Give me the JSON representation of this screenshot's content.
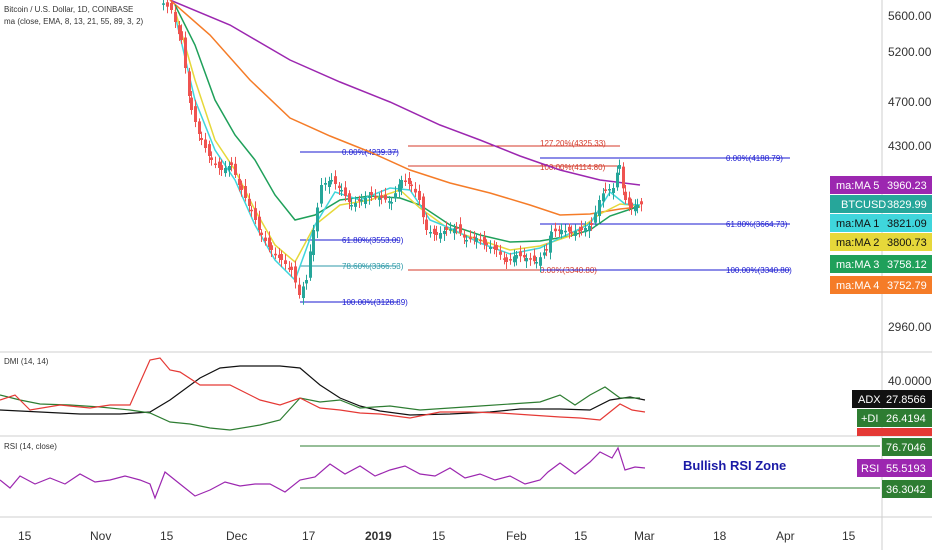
{
  "header": {
    "title": "Bitcoin / U.S. Dollar, 1D, COINBASE",
    "indicator": "ma (close, EMA, 8, 13, 21, 55, 89, 3, 2)"
  },
  "price_axis": [
    "5600.00",
    "5200.00",
    "4700.00",
    "4300.00",
    "2960.00"
  ],
  "price_labels": [
    {
      "name": "ma:MA 5",
      "value": "3960.23",
      "color": "#9c27b0"
    },
    {
      "name": "BTCUSD",
      "value": "3829.99",
      "color": "#26a69a"
    },
    {
      "name": "ma:MA 1",
      "value": "3821.09",
      "color": "#3fd6dc"
    },
    {
      "name": "ma:MA 2",
      "value": "3800.73",
      "color": "#e6d83a"
    },
    {
      "name": "ma:MA 3",
      "value": "3758.12",
      "color": "#1fa05a"
    },
    {
      "name": "ma:MA 4",
      "value": "3752.79",
      "color": "#f57c28"
    }
  ],
  "fib_labels": [
    {
      "text": "0.00%(4239.37)",
      "color": "blue"
    },
    {
      "text": "61.80%(3553.09)",
      "color": "blue"
    },
    {
      "text": "78.60%(3366.53)",
      "color": "teal"
    },
    {
      "text": "100.00%(3128.89)",
      "color": "blue"
    },
    {
      "text": "127.20%(4325.33)",
      "color": "red"
    },
    {
      "text": "100.00%(4114.80)",
      "color": "red"
    },
    {
      "text": "0.00%(3340.80)",
      "color": "red"
    },
    {
      "text": "0.00%(4188.79)",
      "color": "blue"
    },
    {
      "text": "61.80%(3664.73)",
      "color": "blue"
    },
    {
      "text": "100.00%(3340.80)",
      "color": "blue"
    }
  ],
  "dmi": {
    "title": "DMI (14, 14)",
    "axis": "40.0000",
    "labels": [
      {
        "name": "ADX",
        "value": "27.8566",
        "color": "#111111"
      },
      {
        "name": "+DI",
        "value": "26.4194",
        "color": "#2e7d32"
      },
      {
        "name": "-DI",
        "value": "",
        "color": "#e53935"
      }
    ]
  },
  "rsi": {
    "title": "RSI (14, close)",
    "zone_text": "Bullish RSI Zone",
    "upper": "76.7046",
    "value": "55.5193",
    "lower": "36.3042",
    "value_name": "RSI"
  },
  "time_axis": [
    "15",
    "Nov",
    "15",
    "Dec",
    "17",
    "2019",
    "15",
    "Feb",
    "15",
    "Mar",
    "18",
    "Apr",
    "15"
  ],
  "chart_data": {
    "type": "line",
    "title": "Bitcoin / U.S. Dollar, 1D, COINBASE",
    "xlabel": "",
    "ylabel": "",
    "x": [
      "Oct 15",
      "Nov 1",
      "Nov 15",
      "Dec 1",
      "Dec 17",
      "Jan 1",
      "Jan 15",
      "Feb 1",
      "Feb 15",
      "Mar 1",
      "Mar 18",
      "Apr 1",
      "Apr 15"
    ],
    "series": [
      {
        "name": "BTCUSD",
        "values": [
          null,
          5800,
          5600,
          4200,
          3300,
          3900,
          3600,
          3450,
          3630,
          3830,
          null,
          null,
          null
        ]
      },
      {
        "name": "ma:MA 5",
        "values": [
          null,
          null,
          5700,
          4700,
          4350,
          4150,
          4000,
          3880,
          3850,
          3960,
          null,
          null,
          null
        ]
      },
      {
        "name": "ma:MA 4",
        "values": [
          null,
          null,
          5500,
          4400,
          3950,
          3880,
          3790,
          3700,
          3680,
          3753,
          null,
          null,
          null
        ]
      }
    ],
    "ylim": [
      2800,
      5800
    ],
    "grid": false,
    "annotations": [
      "0.00%(4239.37)",
      "61.80%(3553.09)",
      "78.60%(3366.53)",
      "100.00%(3128.89)",
      "127.20%(4325.33)",
      "100.00%(4114.80)",
      "0.00%(3340.80)",
      "0.00%(4188.79)",
      "61.80%(3664.73)",
      "100.00%(3340.80)"
    ]
  }
}
